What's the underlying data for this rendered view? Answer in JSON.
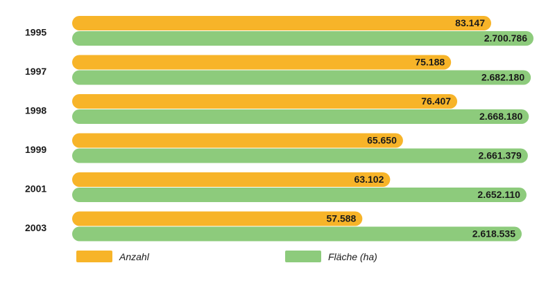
{
  "chart_data": {
    "type": "bar",
    "orientation": "horizontal",
    "categories": [
      "1995",
      "1997",
      "1998",
      "1999",
      "2001",
      "2003"
    ],
    "series": [
      {
        "name": "Anzahl",
        "color": "#F7B429",
        "values": [
          83147,
          75188,
          76407,
          65650,
          63102,
          57588
        ],
        "labels": [
          "83.147",
          "75.188",
          "76.407",
          "65.650",
          "63.102",
          "57.588"
        ]
      },
      {
        "name": "Fläche (ha)",
        "color": "#8DCB7C",
        "values": [
          2700786,
          2682180,
          2668180,
          2661379,
          2652110,
          2618535
        ],
        "labels": [
          "2.700.786",
          "2.682.180",
          "2.668.180",
          "2.661.379",
          "2.652.110",
          "2.618.535"
        ]
      }
    ],
    "legend_position": "bottom",
    "grid": false
  }
}
